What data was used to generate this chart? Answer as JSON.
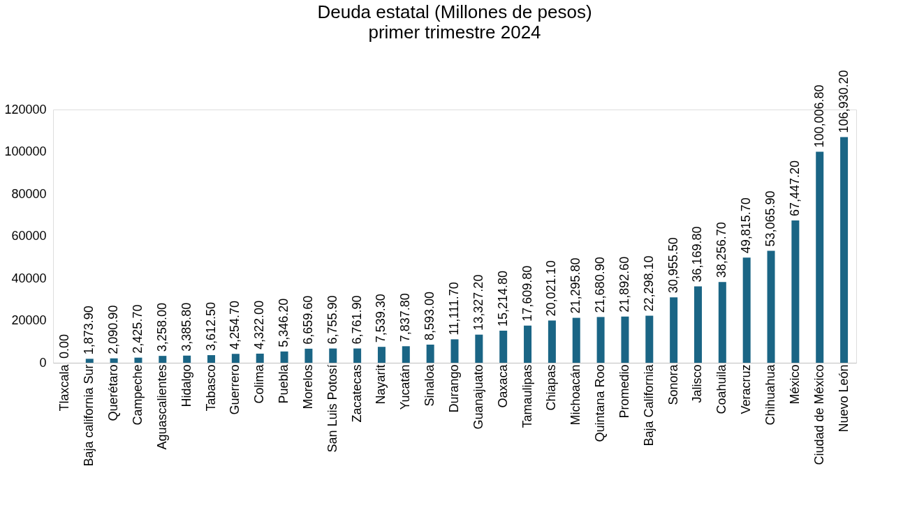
{
  "chart_data": {
    "type": "bar",
    "title": "Deuda estatal (Millones de pesos)",
    "subtitle": "primer trimestre 2024",
    "categories": [
      "Tlaxcala",
      "Baja california Sur",
      "Querétaro",
      "Campeche",
      "Aguascalientes",
      "Hidalgo",
      "Tabasco",
      "Guerrero",
      "Colima",
      "Puebla",
      "Morelos",
      "San Luis Potosí",
      "Zacatecas",
      "Nayarit",
      "Yucatán",
      "Sinaloa",
      "Durango",
      "Guanajuato",
      "Oaxaca",
      "Tamaulipas",
      "Chiapas",
      "Michoacán",
      "Quintana Roo",
      "Promedio",
      "Baja California",
      "Sonora",
      "Jalisco",
      "Coahuila",
      "Veracruz",
      "Chihuahua",
      "México",
      "Ciudad de México",
      "Nuevo León"
    ],
    "values": [
      0.0,
      1873.9,
      2090.9,
      2425.7,
      3258.0,
      3385.8,
      3612.5,
      4254.7,
      4322.0,
      5346.2,
      6659.6,
      6755.9,
      6761.9,
      7539.3,
      7837.8,
      8593.0,
      11111.7,
      13327.2,
      15214.8,
      17609.8,
      20021.1,
      21295.8,
      21680.9,
      21892.6,
      22298.1,
      30955.5,
      36169.8,
      38256.7,
      49815.7,
      53065.9,
      67447.2,
      100006.8,
      106930.2
    ],
    "value_labels": [
      "0.00",
      "1,873.90",
      "2,090.90",
      "2,425.70",
      "3,258.00",
      "3,385.80",
      "3,612.50",
      "4,254.70",
      "4,322.00",
      "5,346.20",
      "6,659.60",
      "6,755.90",
      "6,761.90",
      "7,539.30",
      "7,837.80",
      "8,593.00",
      "11,111.70",
      "13,327.20",
      "15,214.80",
      "17,609.80",
      "20,021.10",
      "21,295.80",
      "21,680.90",
      "21,892.60",
      "22,298.10",
      "30,955.50",
      "36,169.80",
      "38,256.70",
      "49,815.70",
      "53,065.90",
      "67,447.20",
      "100,006.80",
      "106,930.20"
    ],
    "color": "#1a6585",
    "ylim": [
      0,
      120000
    ],
    "yticks": [
      0,
      20000,
      40000,
      60000,
      80000,
      100000,
      120000
    ],
    "grid": false
  }
}
